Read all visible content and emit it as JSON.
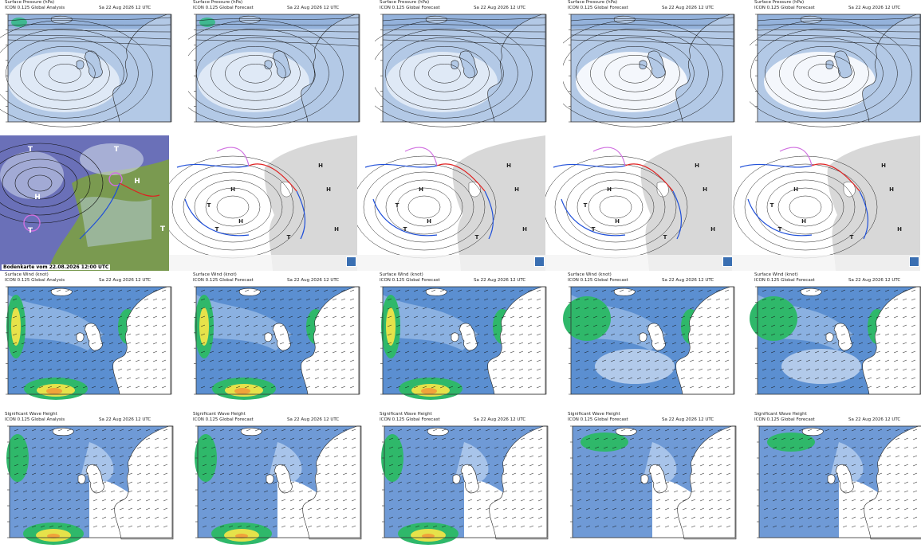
{
  "rows": {
    "pressure": {
      "title": "Surface Pressure (hPa)",
      "panels": [
        {
          "line2": "ICON 0.125 Global Analysis",
          "date": "Sa 22 Aug 2026",
          "time": "12 UTC"
        },
        {
          "line2": "ICON 0.125 Global Forecast",
          "date": "Sa 22 Aug 2026",
          "time": "12 UTC"
        },
        {
          "line2": "ICON 0.125 Global Forecast",
          "date": "Sa 22 Aug 2026",
          "time": "12 UTC"
        },
        {
          "line2": "ICON 0.125 Global Forecast",
          "date": "Sa 22 Aug 2026",
          "time": "12 UTC"
        },
        {
          "line2": "ICON 0.125 Global Forecast",
          "date": "Sa 22 Aug 2026",
          "time": "12 UTC"
        }
      ]
    },
    "analysis": {
      "caption": "Bodenkarte vom 22.08.2026 12:00 UTC",
      "high_symbol": "H",
      "low_symbol": "T"
    },
    "wind": {
      "title": "Surface Wind (knot)",
      "panels": [
        {
          "line2": "ICON 0.125 Global Analysis",
          "date": "Sa 22 Aug 2026",
          "time": "12 UTC"
        },
        {
          "line2": "ICON 0.125 Global Forecast",
          "date": "Sa 22 Aug 2026",
          "time": "12 UTC"
        },
        {
          "line2": "ICON 0.125 Global Forecast",
          "date": "Sa 22 Aug 2026",
          "time": "12 UTC"
        },
        {
          "line2": "ICON 0.125 Global Forecast",
          "date": "Sa 22 Aug 2026",
          "time": "12 UTC"
        },
        {
          "line2": "ICON 0.125 Global Forecast",
          "date": "Sa 22 Aug 2026",
          "time": "12 UTC"
        }
      ]
    },
    "waves": {
      "title": "Significant Wave Height",
      "panels": [
        {
          "line2": "ICON 0.125 Global Analysis",
          "date": "Sa 22 Aug 2026",
          "time": "12 UTC"
        },
        {
          "line2": "ICON 0.125 Global Forecast",
          "date": "Sa 22 Aug 2026",
          "time": "12 UTC"
        },
        {
          "line2": "ICON 0.125 Global Forecast",
          "date": "Sa 22 Aug 2026",
          "time": "12 UTC"
        },
        {
          "line2": "ICON 0.125 Global Forecast",
          "date": "Sa 22 Aug 2026",
          "time": "12 UTC"
        },
        {
          "line2": "ICON 0.125 Global Forecast",
          "date": "Sa 22 Aug 2026",
          "time": "12 UTC"
        }
      ]
    }
  },
  "colors": {
    "ocean_pressure": "#b3c9e6",
    "ocean_light": "#e6eef8",
    "ocean_dark": "#7ea3d4",
    "land_pressure": "#ffffff",
    "land_gray": "#d8d8d8",
    "wind_base": "#5b8fd1",
    "wind_green": "#2fb86a",
    "wind_yellow": "#e6e24a",
    "wind_orange": "#f1a33a",
    "front_cold": "#1f4fd8",
    "front_warm": "#e02020",
    "front_occluded": "#d070e0"
  },
  "colorbars": {
    "pressure": [
      "#ffffff",
      "#e07a1a",
      "#f0a030",
      "#f5d040",
      "#c8e040",
      "#6fcf6f",
      "#38b8b0",
      "#4fa0e0",
      "#7ea3d4",
      "#a8c0e4",
      "#c8d8f0",
      "#e8eef8"
    ],
    "wind": [
      "#ffffff",
      "#c8d8f0",
      "#8fb0e0",
      "#5b8fd1",
      "#2fb86a",
      "#9ad04a",
      "#e6e24a",
      "#f1c43a",
      "#f18a30",
      "#e04020",
      "#b01818",
      "#7a0c4a",
      "#d040d0"
    ],
    "waves": [
      "#ffffff",
      "#c8d8f0",
      "#8fb0e0",
      "#5b8fd1",
      "#3ab07a",
      "#2fb86a",
      "#9ad04a",
      "#e6e24a",
      "#f1c43a",
      "#f18a30",
      "#e04020",
      "#b01818",
      "#d040d0"
    ]
  }
}
